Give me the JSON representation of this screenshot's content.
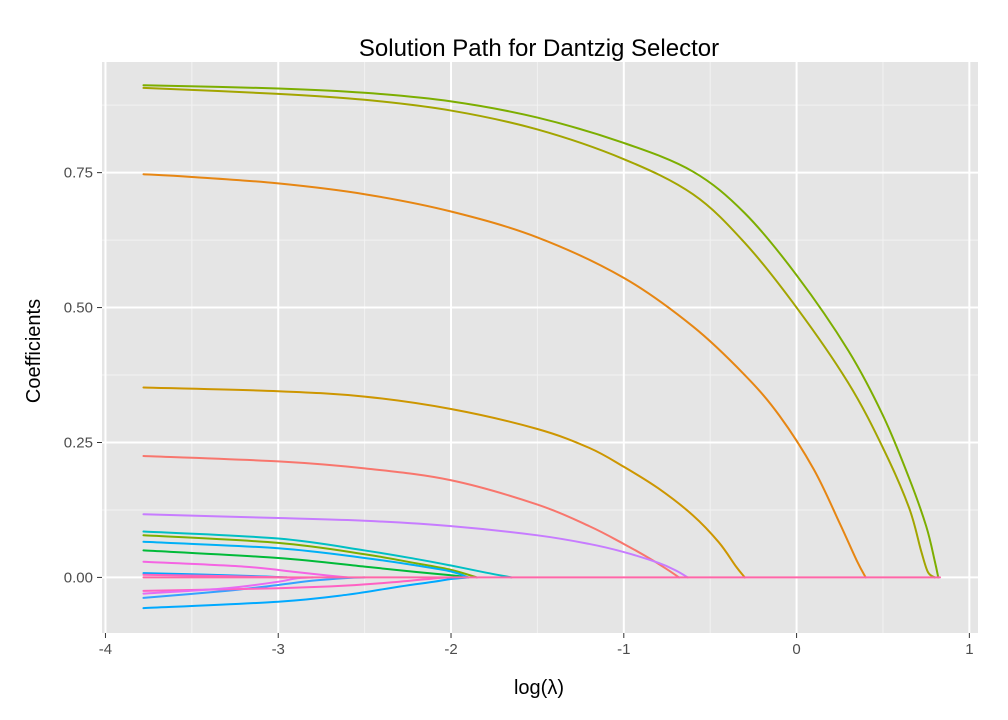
{
  "chart_data": {
    "type": "line",
    "title": "Solution Path for Dantzig Selector",
    "xlabel": "log(λ)",
    "ylabel": "Coefficients",
    "xlim": [
      -4.02,
      1.05
    ],
    "ylim": [
      -0.103,
      0.955
    ],
    "x_ticks": [
      -4,
      -3,
      -2,
      -1,
      0,
      1
    ],
    "x_tick_labels": [
      "-4",
      "-3",
      "-2",
      "-1",
      "0",
      "1"
    ],
    "y_ticks": [
      0.0,
      0.25,
      0.5,
      0.75
    ],
    "y_tick_labels": [
      "0.00",
      "0.25",
      "0.50",
      "0.75"
    ],
    "grid": true,
    "legend": "none",
    "colors": {
      "panel_background": "#e5e5e5",
      "major_grid": "#ffffff",
      "minor_grid": "#f2f2f2",
      "tick_label": "#4d4d4d"
    },
    "series": [
      {
        "color": "#7CAE00",
        "x": [
          -3.78,
          -3.0,
          -2.5,
          -2.0,
          -1.5,
          -1.0,
          -0.6,
          -0.3,
          0.0,
          0.3,
          0.5,
          0.65,
          0.75,
          0.8,
          0.82
        ],
        "y": [
          0.912,
          0.906,
          0.898,
          0.882,
          0.852,
          0.805,
          0.752,
          0.675,
          0.56,
          0.42,
          0.3,
          0.185,
          0.095,
          0.03,
          0.0
        ]
      },
      {
        "color": "#A3A500",
        "x": [
          -3.78,
          -3.0,
          -2.5,
          -2.0,
          -1.5,
          -1.0,
          -0.6,
          -0.3,
          0.0,
          0.3,
          0.5,
          0.65,
          0.72,
          0.76,
          0.8
        ],
        "y": [
          0.907,
          0.896,
          0.885,
          0.865,
          0.83,
          0.775,
          0.71,
          0.62,
          0.5,
          0.36,
          0.24,
          0.13,
          0.05,
          0.01,
          0.0
        ]
      },
      {
        "color": "#E68613",
        "x": [
          -3.78,
          -3.5,
          -3.0,
          -2.5,
          -2.0,
          -1.5,
          -1.0,
          -0.6,
          -0.3,
          -0.1,
          0.1,
          0.25,
          0.35,
          0.4
        ],
        "y": [
          0.747,
          0.742,
          0.73,
          0.71,
          0.678,
          0.63,
          0.555,
          0.465,
          0.375,
          0.3,
          0.2,
          0.1,
          0.03,
          0.0
        ]
      },
      {
        "color": "#CD9600",
        "x": [
          -3.78,
          -3.0,
          -2.5,
          -2.0,
          -1.5,
          -1.2,
          -1.0,
          -0.8,
          -0.6,
          -0.45,
          -0.35,
          -0.3
        ],
        "y": [
          0.352,
          0.345,
          0.335,
          0.312,
          0.275,
          0.24,
          0.205,
          0.165,
          0.115,
          0.065,
          0.02,
          0.0
        ]
      },
      {
        "color": "#F8766D",
        "x": [
          -3.78,
          -3.0,
          -2.5,
          -2.0,
          -1.5,
          -1.2,
          -1.0,
          -0.85,
          -0.75,
          -0.68
        ],
        "y": [
          0.225,
          0.215,
          0.202,
          0.18,
          0.135,
          0.095,
          0.062,
          0.035,
          0.015,
          0.0
        ]
      },
      {
        "color": "#C77CFF",
        "x": [
          -3.78,
          -3.0,
          -2.5,
          -2.0,
          -1.5,
          -1.2,
          -1.0,
          -0.8,
          -0.7,
          -0.63
        ],
        "y": [
          0.117,
          0.11,
          0.105,
          0.095,
          0.078,
          0.062,
          0.047,
          0.027,
          0.013,
          0.0
        ]
      },
      {
        "color": "#00BFC4",
        "x": [
          -3.78,
          -3.0,
          -2.5,
          -2.2,
          -2.0,
          -1.8,
          -1.65
        ],
        "y": [
          0.085,
          0.072,
          0.05,
          0.034,
          0.022,
          0.009,
          0.0
        ]
      },
      {
        "color": "#00BA38",
        "x": [
          -3.78,
          -3.0,
          -2.5,
          -2.2,
          -2.0,
          -1.9
        ],
        "y": [
          0.05,
          0.036,
          0.02,
          0.01,
          0.004,
          0.0
        ]
      },
      {
        "color": "#7CAE00",
        "x": [
          -3.78,
          -3.0,
          -2.5,
          -2.2,
          -2.0,
          -1.85
        ],
        "y": [
          0.078,
          0.064,
          0.043,
          0.026,
          0.014,
          0.0
        ]
      },
      {
        "color": "#00B0F6",
        "x": [
          -3.78,
          -3.0,
          -2.5,
          -2.2,
          -2.0,
          -1.9
        ],
        "y": [
          0.066,
          0.054,
          0.036,
          0.022,
          0.011,
          0.0
        ]
      },
      {
        "color": "#F564E3",
        "x": [
          -3.78,
          -3.2,
          -2.9,
          -2.7,
          -2.6
        ],
        "y": [
          0.029,
          0.02,
          0.01,
          0.003,
          0.0
        ]
      },
      {
        "color": "#00A9FF",
        "x": [
          -3.78,
          -3.0,
          -2.6,
          -2.3,
          -2.1,
          -2.0,
          -1.9
        ],
        "y": [
          -0.057,
          -0.045,
          -0.032,
          -0.017,
          -0.008,
          -0.003,
          0.0
        ]
      },
      {
        "color": "#35A2FF",
        "x": [
          -3.78,
          -3.3,
          -3.0,
          -2.8,
          -2.6,
          -2.5
        ],
        "y": [
          -0.038,
          -0.025,
          -0.014,
          -0.006,
          -0.001,
          0.0
        ]
      },
      {
        "color": "#FF61C3",
        "x": [
          -3.78,
          -3.0,
          -2.6,
          -2.3,
          -2.1,
          -2.0
        ],
        "y": [
          -0.025,
          -0.02,
          -0.015,
          -0.008,
          -0.002,
          0.0
        ]
      },
      {
        "color": "#E76BF3",
        "x": [
          -3.78,
          -3.3,
          -3.0,
          -2.9,
          -2.8
        ],
        "y": [
          -0.03,
          -0.02,
          -0.008,
          -0.002,
          0.0
        ]
      },
      {
        "color": "#00A5FF",
        "x": [
          -3.78,
          -3.4,
          -3.1,
          -2.95
        ],
        "y": [
          0.008,
          0.005,
          0.002,
          0.0
        ]
      },
      {
        "color": "#FF62BC",
        "x": [
          -3.78,
          -3.4,
          -3.1,
          -2.95
        ],
        "y": [
          0.005,
          0.003,
          0.001,
          0.0
        ]
      },
      {
        "color": "#FF66A8",
        "x": [
          -3.78,
          -1.6,
          0.83
        ],
        "y": [
          0.0,
          0.0,
          0.0
        ]
      }
    ]
  }
}
